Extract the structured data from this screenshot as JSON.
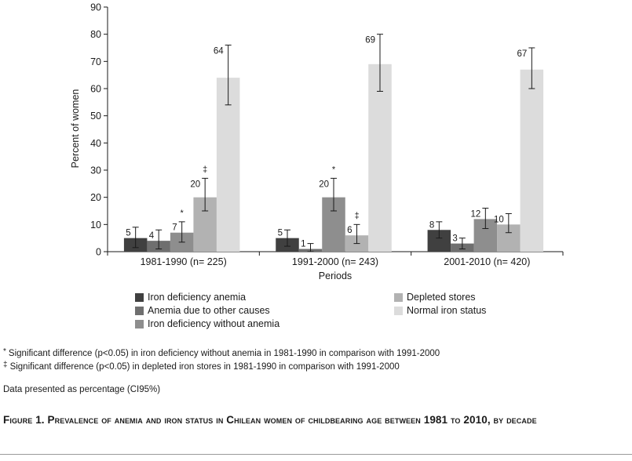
{
  "chart_data": {
    "type": "bar",
    "ylabel": "Percent of women",
    "xlabel": "Periods",
    "ylim": [
      0,
      90
    ],
    "yticks": [
      0,
      10,
      20,
      30,
      40,
      50,
      60,
      70,
      80,
      90
    ],
    "grid": false,
    "categories": [
      "1981-1990 (n= 225)",
      "1991-2000 (n= 243)",
      "2001-2010 (n= 420)"
    ],
    "series": [
      {
        "name": "Iron deficiency anemia",
        "color": "#404040",
        "values": [
          5,
          5,
          8
        ],
        "ci_low": [
          1.5,
          2,
          5
        ],
        "ci_high": [
          9,
          8,
          11
        ],
        "value_labels": [
          "5",
          "5",
          "8"
        ],
        "markers": [
          "",
          "",
          ""
        ]
      },
      {
        "name": "Anemia due to other causes",
        "color": "#6f6f6f",
        "values": [
          4,
          1,
          3
        ],
        "ci_low": [
          1,
          0,
          1
        ],
        "ci_high": [
          8,
          3,
          5
        ],
        "value_labels": [
          "4",
          "1",
          "3"
        ],
        "markers": [
          "",
          "",
          ""
        ]
      },
      {
        "name": "Iron deficiency without anemia",
        "color": "#8e8e8e",
        "values": [
          7,
          20,
          12
        ],
        "ci_low": [
          3.5,
          15,
          8.5
        ],
        "ci_high": [
          11,
          27,
          16
        ],
        "value_labels": [
          "7",
          "20",
          "12"
        ],
        "markers": [
          "*",
          "*",
          ""
        ]
      },
      {
        "name": "Depleted stores",
        "color": "#b2b2b2",
        "values": [
          20,
          6,
          10
        ],
        "ci_low": [
          15,
          3,
          7
        ],
        "ci_high": [
          27,
          10,
          14
        ],
        "value_labels": [
          "20",
          "6",
          "10"
        ],
        "markers": [
          "‡",
          "‡",
          ""
        ]
      },
      {
        "name": "Normal iron status",
        "color": "#dcdcdc",
        "values": [
          64,
          69,
          67
        ],
        "ci_low": [
          54,
          59,
          60
        ],
        "ci_high": [
          76,
          80,
          75
        ],
        "value_labels": [
          "64",
          "69",
          "67"
        ],
        "markers": [
          "",
          "",
          ""
        ]
      }
    ]
  },
  "legend": [
    {
      "label": "Iron deficiency anemia",
      "color": "#404040"
    },
    {
      "label": "Anemia due to other causes",
      "color": "#6f6f6f"
    },
    {
      "label": "Iron deficiency without anemia",
      "color": "#8e8e8e"
    },
    {
      "label": "Depleted stores",
      "color": "#b2b2b2"
    },
    {
      "label": "Normal iron status",
      "color": "#dcdcdc"
    }
  ],
  "notes": [
    {
      "mark": "*",
      "text": "Significant difference (p<0.05) in iron deficiency without anemia in 1981-1990 in comparison with 1991-2000"
    },
    {
      "mark": "‡",
      "text": "Significant difference (p<0.05) in depleted iron stores in 1981-1990 in comparison with 1991-2000"
    }
  ],
  "source_note": "Data presented as percentage (CI95%)",
  "caption": "Figure 1. Prevalence of anemia and iron status in Chilean women of childbearing age between 1981 to 2010, by decade"
}
